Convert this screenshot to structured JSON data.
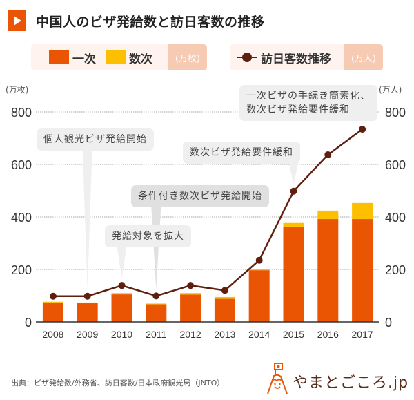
{
  "title": "中国人のビザ発給数と訪日客数の推移",
  "legend": {
    "bars": [
      {
        "label": "一次",
        "color": "#ea5504"
      },
      {
        "label": "数次",
        "color": "#fcc000"
      }
    ],
    "bars_unit": "(万枚)",
    "line": {
      "label": "訪日客数推移",
      "color": "#5e1f0e"
    },
    "line_unit": "(万人)"
  },
  "axis_units": {
    "left": "(万枚)",
    "right": "(万人)"
  },
  "callouts": [
    {
      "id": "c1",
      "text": "個人観光ビザ発給開始",
      "year": "2009"
    },
    {
      "id": "c2",
      "text": "発給対象を拡大",
      "year": "2010"
    },
    {
      "id": "c3",
      "text": "条件付き数次ビザ発給開始",
      "year": "2011"
    },
    {
      "id": "c4",
      "text": "数次ビザ発給要件緩和",
      "year": "2015"
    },
    {
      "id": "c5",
      "text": "一次ビザの手続き簡素化、\n数次ビザ発給要件緩和",
      "year": "2017"
    }
  ],
  "chart_data": {
    "type": "bar",
    "title": "中国人のビザ発給数と訪日客数の推移",
    "categories": [
      "2008",
      "2009",
      "2010",
      "2011",
      "2012",
      "2013",
      "2014",
      "2015",
      "2016",
      "2017"
    ],
    "series": [
      {
        "name": "一次",
        "kind": "bar-stacked",
        "axis": "left",
        "color": "#ea5504",
        "values": [
          74,
          71,
          105,
          67,
          104,
          88,
          197,
          363,
          392,
          392
        ]
      },
      {
        "name": "数次",
        "kind": "bar-stacked",
        "axis": "left",
        "color": "#fcc000",
        "values": [
          3,
          3,
          5,
          3,
          6,
          7,
          5,
          14,
          32,
          61
        ]
      },
      {
        "name": "訪日客数推移",
        "kind": "line",
        "axis": "right",
        "color": "#5e1f0e",
        "values": [
          98,
          98,
          139,
          99,
          139,
          120,
          235,
          498,
          637,
          734
        ]
      }
    ],
    "ylabel_left": "(万枚)",
    "ylabel_right": "(万人)",
    "ylim": [
      0,
      800
    ],
    "yticks": [
      "0",
      "200",
      "400",
      "600",
      "800"
    ],
    "grid": true
  },
  "footer": {
    "source": "出典：ビザ発給数/外務省、訪日客数/日本政府観光局（JNTO）",
    "logo_text": "やまとごころ.jp"
  }
}
